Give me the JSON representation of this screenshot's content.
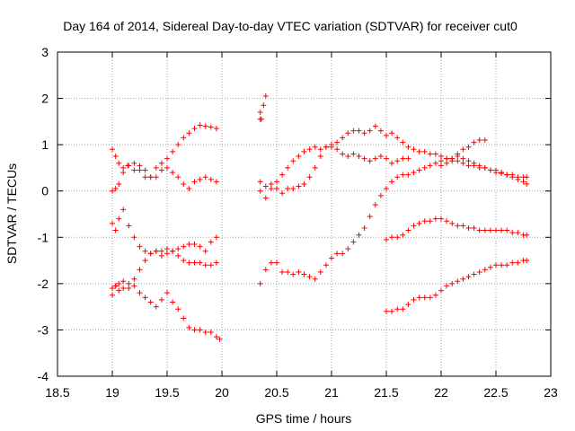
{
  "chart_data": {
    "type": "scatter",
    "title": "Day 164 of 2014, Sidereal Day-to-day VTEC variation (SDTVAR) for receiver cut0",
    "xlabel": "GPS time / hours",
    "ylabel": "SDTVAR / TECUs",
    "xlim": [
      18.5,
      23
    ],
    "ylim": [
      -4,
      3
    ],
    "xticks": [
      18.5,
      19,
      19.5,
      20,
      20.5,
      21,
      21.5,
      22,
      22.5,
      23
    ],
    "xtick_labels": [
      "18.5",
      "19",
      "19.5",
      "20",
      "20.5",
      "21",
      "21.5",
      "22",
      "22.5",
      "23"
    ],
    "yticks": [
      -4,
      -3,
      -2,
      -1,
      0,
      1,
      2,
      3
    ],
    "ytick_labels": [
      "-4",
      "-3",
      "-2",
      "-1",
      "0",
      "1",
      "2",
      "3"
    ],
    "grid": true,
    "marker": "+",
    "color": "#ff0000",
    "series": [
      {
        "name": "track-1",
        "x": [
          19.0,
          19.03,
          19.06,
          19.1,
          19.14,
          19.2,
          19.25,
          19.3,
          19.35,
          19.4,
          19.45,
          19.5,
          19.55,
          19.6,
          19.65,
          19.7,
          19.75,
          19.8,
          19.85,
          19.9,
          19.95
        ],
        "y": [
          0.0,
          0.05,
          0.15,
          0.4,
          0.55,
          0.6,
          0.45,
          0.3,
          0.3,
          0.5,
          0.6,
          0.7,
          0.85,
          1.0,
          1.15,
          1.25,
          1.35,
          1.42,
          1.4,
          1.38,
          1.35
        ]
      },
      {
        "name": "track-2",
        "x": [
          19.0,
          19.03,
          19.06,
          19.1,
          19.15,
          19.2,
          19.25,
          19.3,
          19.35,
          19.4,
          19.45,
          19.5,
          19.55,
          19.6,
          19.65,
          19.7,
          19.75,
          19.8,
          19.85,
          19.9,
          19.95
        ],
        "y": [
          0.9,
          0.75,
          0.6,
          0.5,
          0.55,
          0.45,
          0.55,
          0.45,
          0.3,
          0.3,
          0.45,
          0.5,
          0.4,
          0.3,
          0.15,
          0.05,
          0.2,
          0.25,
          0.3,
          0.25,
          0.2
        ]
      },
      {
        "name": "track-3",
        "x": [
          19.0,
          19.03,
          19.06,
          19.1,
          19.15,
          19.2,
          19.25,
          19.3,
          19.35,
          19.4,
          19.45,
          19.5,
          19.55,
          19.6,
          19.65,
          19.7,
          19.75,
          19.8,
          19.85,
          19.9,
          19.95
        ],
        "y": [
          -0.7,
          -0.85,
          -0.6,
          -0.4,
          -0.75,
          -1.0,
          -1.2,
          -1.3,
          -1.35,
          -1.3,
          -1.4,
          -1.35,
          -1.3,
          -1.25,
          -1.2,
          -1.15,
          -1.15,
          -1.2,
          -1.3,
          -1.1,
          -1.0
        ]
      },
      {
        "name": "track-4",
        "x": [
          19.0,
          19.03,
          19.06,
          19.1,
          19.15,
          19.2,
          19.25,
          19.3,
          19.35,
          19.4,
          19.45,
          19.5,
          19.55,
          19.6,
          19.65,
          19.7,
          19.75,
          19.8,
          19.85,
          19.9,
          19.95
        ],
        "y": [
          -2.1,
          -2.05,
          -2.0,
          -1.95,
          -2.1,
          -1.9,
          -1.7,
          -1.5,
          -1.35,
          -1.3,
          -1.3,
          -1.25,
          -1.3,
          -1.4,
          -1.5,
          -1.55,
          -1.55,
          -1.55,
          -1.6,
          -1.6,
          -1.55
        ]
      },
      {
        "name": "track-5",
        "x": [
          19.0,
          19.03,
          19.06,
          19.1,
          19.15,
          19.2,
          19.25,
          19.3,
          19.35,
          19.4,
          19.45,
          19.5,
          19.55,
          19.6,
          19.65,
          19.7,
          19.75,
          19.8,
          19.85,
          19.9,
          19.95,
          19.98
        ],
        "y": [
          -2.25,
          -2.05,
          -2.15,
          -2.1,
          -2.0,
          -2.05,
          -2.2,
          -2.3,
          -2.4,
          -2.5,
          -2.35,
          -2.2,
          -2.4,
          -2.55,
          -2.75,
          -2.95,
          -3.0,
          -3.0,
          -3.05,
          -3.05,
          -3.15,
          -3.2
        ]
      },
      {
        "name": "track-6",
        "x": [
          20.35,
          20.35,
          20.38,
          20.4,
          20.36
        ],
        "y": [
          1.55,
          1.7,
          1.85,
          2.05,
          1.55
        ]
      },
      {
        "name": "track-7",
        "x": [
          20.35,
          20.4,
          20.45,
          20.5,
          20.55,
          20.6,
          20.65,
          20.7,
          20.75,
          20.8,
          20.85,
          20.9,
          20.95,
          21.0,
          21.05,
          21.1,
          21.15,
          21.2,
          21.25,
          21.3,
          21.35,
          21.4,
          21.45,
          21.5,
          21.55,
          21.6,
          21.65,
          21.7
        ],
        "y": [
          0.0,
          -0.15,
          0.05,
          0.2,
          0.35,
          0.5,
          0.65,
          0.75,
          0.85,
          0.9,
          0.95,
          0.9,
          0.95,
          0.95,
          0.9,
          0.8,
          0.75,
          0.8,
          0.75,
          0.7,
          0.65,
          0.7,
          0.75,
          0.7,
          0.6,
          0.65,
          0.7,
          0.7
        ]
      },
      {
        "name": "track-8",
        "x": [
          20.35,
          20.4,
          20.45,
          20.5,
          20.55,
          20.6,
          20.65,
          20.7,
          20.75,
          20.8,
          20.85,
          20.9,
          20.95,
          21.0,
          21.05,
          21.1,
          21.15,
          21.2,
          21.25,
          21.3,
          21.35,
          21.4,
          21.45,
          21.5,
          21.55,
          21.6,
          21.65,
          21.7,
          21.75,
          21.8,
          21.85,
          21.9,
          21.95,
          22.0,
          22.05,
          22.1,
          22.15,
          22.2,
          22.25,
          22.3,
          22.35,
          22.4,
          22.45,
          22.5,
          22.55,
          22.6,
          22.65,
          22.7,
          22.75,
          22.78
        ],
        "y": [
          0.2,
          0.1,
          0.15,
          0.05,
          -0.05,
          0.05,
          0.05,
          0.1,
          0.15,
          0.3,
          0.5,
          0.75,
          0.95,
          1.0,
          1.05,
          1.15,
          1.25,
          1.3,
          1.3,
          1.25,
          1.3,
          1.4,
          1.3,
          1.2,
          1.25,
          1.15,
          1.05,
          0.95,
          0.9,
          0.85,
          0.85,
          0.8,
          0.8,
          0.75,
          0.7,
          0.65,
          0.65,
          0.6,
          0.55,
          0.55,
          0.5,
          0.5,
          0.45,
          0.4,
          0.38,
          0.35,
          0.3,
          0.25,
          0.2,
          0.15
        ]
      },
      {
        "name": "track-9",
        "x": [
          20.35,
          20.4,
          20.45,
          20.5,
          20.55,
          20.6,
          20.65,
          20.7,
          20.75,
          20.8,
          20.85,
          20.9,
          20.95,
          21.0,
          21.05,
          21.1,
          21.15,
          21.2,
          21.25,
          21.3,
          21.35,
          21.4,
          21.45,
          21.5,
          21.55,
          21.6,
          21.65,
          21.7,
          21.75,
          21.8,
          21.85,
          21.9,
          21.95,
          22.0,
          22.05,
          22.1,
          22.15,
          22.2,
          22.25,
          22.3,
          22.35,
          22.4,
          22.45,
          22.5,
          22.55,
          22.6,
          22.65,
          22.7,
          22.75,
          22.78
        ],
        "y": [
          -2.0,
          -1.7,
          -1.55,
          -1.55,
          -1.75,
          -1.75,
          -1.8,
          -1.75,
          -1.8,
          -1.85,
          -1.9,
          -1.75,
          -1.6,
          -1.45,
          -1.35,
          -1.35,
          -1.25,
          -1.1,
          -0.95,
          -0.8,
          -0.55,
          -0.3,
          -0.1,
          0.05,
          0.2,
          0.3,
          0.35,
          0.35,
          0.4,
          0.45,
          0.5,
          0.55,
          0.6,
          0.65,
          0.7,
          0.7,
          0.75,
          0.7,
          0.65,
          0.6,
          0.55,
          0.5,
          0.45,
          0.45,
          0.4,
          0.35,
          0.35,
          0.3,
          0.3,
          0.3
        ]
      },
      {
        "name": "track-10",
        "x": [
          21.5,
          21.55,
          21.6,
          21.65,
          21.7,
          21.75,
          21.8,
          21.85,
          21.9,
          21.95,
          22.0,
          22.05,
          22.1,
          22.15,
          22.2,
          22.25,
          22.3,
          22.35,
          22.4,
          22.45,
          22.5,
          22.55,
          22.6,
          22.65,
          22.7,
          22.75,
          22.78
        ],
        "y": [
          -1.05,
          -1.0,
          -1.0,
          -0.95,
          -0.85,
          -0.75,
          -0.7,
          -0.65,
          -0.65,
          -0.6,
          -0.6,
          -0.65,
          -0.7,
          -0.75,
          -0.75,
          -0.8,
          -0.8,
          -0.85,
          -0.85,
          -0.85,
          -0.85,
          -0.85,
          -0.85,
          -0.9,
          -0.9,
          -0.95,
          -0.95
        ]
      },
      {
        "name": "track-11",
        "x": [
          21.5,
          21.55,
          21.6,
          21.65,
          21.7,
          21.75,
          21.8,
          21.85,
          21.9,
          21.95,
          22.0,
          22.05,
          22.1,
          22.15,
          22.2,
          22.25,
          22.3,
          22.35,
          22.4,
          22.45,
          22.5,
          22.55,
          22.6,
          22.65,
          22.7,
          22.75,
          22.78
        ],
        "y": [
          -2.6,
          -2.6,
          -2.55,
          -2.55,
          -2.45,
          -2.35,
          -2.3,
          -2.3,
          -2.3,
          -2.25,
          -2.15,
          -2.05,
          -2.0,
          -1.95,
          -1.9,
          -1.85,
          -1.8,
          -1.75,
          -1.7,
          -1.65,
          -1.6,
          -1.6,
          -1.6,
          -1.55,
          -1.55,
          -1.5,
          -1.5
        ]
      },
      {
        "name": "track-12",
        "x": [
          22.0,
          22.05,
          22.1,
          22.15,
          22.2,
          22.25,
          22.3,
          22.35,
          22.4
        ],
        "y": [
          0.55,
          0.6,
          0.7,
          0.8,
          0.9,
          0.95,
          1.05,
          1.1,
          1.1
        ]
      }
    ]
  }
}
